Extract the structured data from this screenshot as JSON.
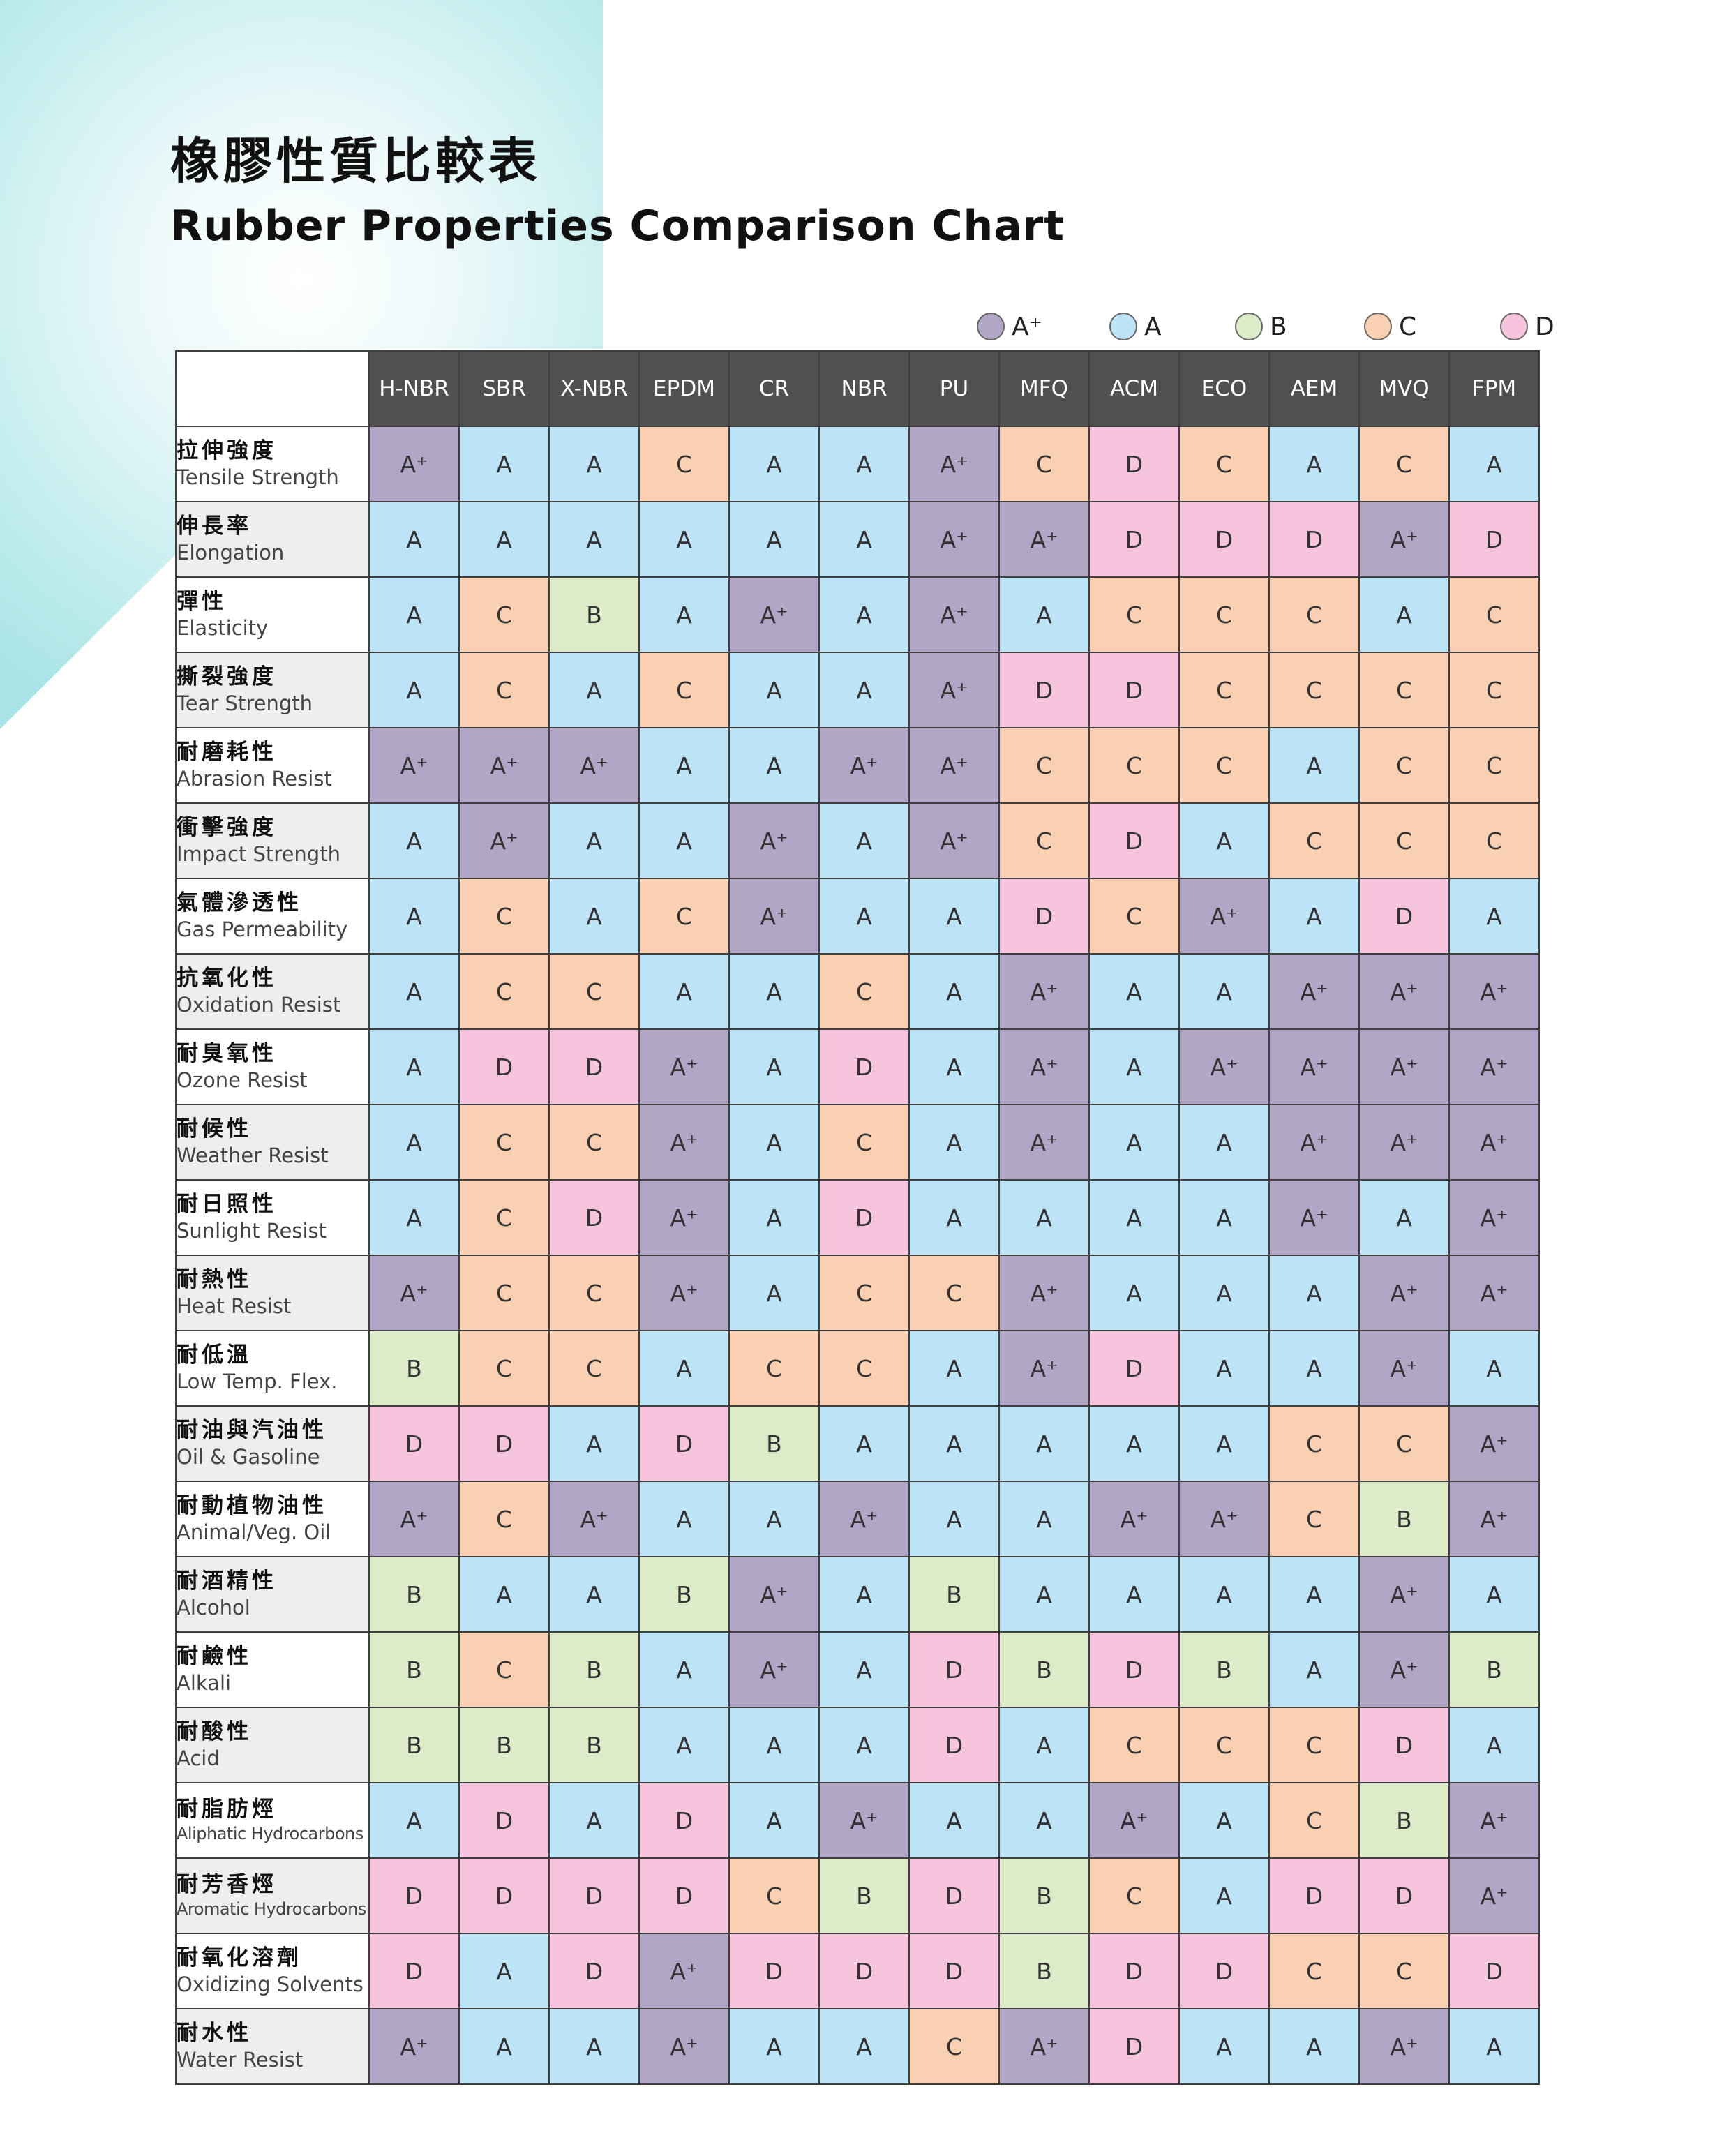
{
  "title": {
    "zh": "橡膠性質比較表",
    "en": "Rubber Properties Comparison Chart"
  },
  "colors": {
    "A+": "#b2a6c6",
    "A": "#bde3f6",
    "B": "#dcecc8",
    "C": "#fad0b3",
    "D": "#f6c4dc",
    "header": "#505050",
    "row_alt": "#eeeeee",
    "bg_accent": "#a9e4e6"
  },
  "legend": [
    {
      "grade": "A+",
      "label": "A⁺"
    },
    {
      "grade": "A",
      "label": "A"
    },
    {
      "grade": "B",
      "label": "B"
    },
    {
      "grade": "C",
      "label": "C"
    },
    {
      "grade": "D",
      "label": "D"
    }
  ],
  "chart_data": {
    "type": "table",
    "columns": [
      "H-NBR",
      "SBR",
      "X-NBR",
      "EPDM",
      "CR",
      "NBR",
      "PU",
      "MFQ",
      "ACM",
      "ECO",
      "AEM",
      "MVQ",
      "FPM"
    ],
    "rows": [
      {
        "zh": "拉伸強度",
        "en": "Tensile Strength",
        "values": [
          "A+",
          "A",
          "A",
          "C",
          "A",
          "A",
          "A+",
          "C",
          "D",
          "C",
          "A",
          "C",
          "A"
        ]
      },
      {
        "zh": "伸長率",
        "en": "Elongation",
        "values": [
          "A",
          "A",
          "A",
          "A",
          "A",
          "A",
          "A+",
          "A+",
          "D",
          "D",
          "D",
          "A+",
          "D"
        ]
      },
      {
        "zh": "彈性",
        "en": "Elasticity",
        "values": [
          "A",
          "C",
          "B",
          "A",
          "A+",
          "A",
          "A+",
          "A",
          "C",
          "C",
          "C",
          "A",
          "C"
        ]
      },
      {
        "zh": "撕裂強度",
        "en": "Tear Strength",
        "values": [
          "A",
          "C",
          "A",
          "C",
          "A",
          "A",
          "A+",
          "D",
          "D",
          "C",
          "C",
          "C",
          "C"
        ]
      },
      {
        "zh": "耐磨耗性",
        "en": "Abrasion Resist",
        "values": [
          "A+",
          "A+",
          "A+",
          "A",
          "A",
          "A+",
          "A+",
          "C",
          "C",
          "C",
          "A",
          "C",
          "C"
        ]
      },
      {
        "zh": "衝擊強度",
        "en": "Impact Strength",
        "values": [
          "A",
          "A+",
          "A",
          "A",
          "A+",
          "A",
          "A+",
          "C",
          "D",
          "A",
          "C",
          "C",
          "C"
        ]
      },
      {
        "zh": "氣體滲透性",
        "en": "Gas Permeability",
        "values": [
          "A",
          "C",
          "A",
          "C",
          "A+",
          "A",
          "A",
          "D",
          "C",
          "A+",
          "A",
          "D",
          "A"
        ]
      },
      {
        "zh": "抗氧化性",
        "en": "Oxidation Resist",
        "values": [
          "A",
          "C",
          "C",
          "A",
          "A",
          "C",
          "A",
          "A+",
          "A",
          "A",
          "A+",
          "A+",
          "A+"
        ]
      },
      {
        "zh": "耐臭氧性",
        "en": "Ozone Resist",
        "values": [
          "A",
          "D",
          "D",
          "A+",
          "A",
          "D",
          "A",
          "A+",
          "A",
          "A+",
          "A+",
          "A+",
          "A+"
        ]
      },
      {
        "zh": "耐候性",
        "en": "Weather Resist",
        "values": [
          "A",
          "C",
          "C",
          "A+",
          "A",
          "C",
          "A",
          "A+",
          "A",
          "A",
          "A+",
          "A+",
          "A+"
        ]
      },
      {
        "zh": "耐日照性",
        "en": "Sunlight Resist",
        "values": [
          "A",
          "C",
          "D",
          "A+",
          "A",
          "D",
          "A",
          "A",
          "A",
          "A",
          "A+",
          "A",
          "A+"
        ]
      },
      {
        "zh": "耐熱性",
        "en": "Heat Resist",
        "values": [
          "A+",
          "C",
          "C",
          "A+",
          "A",
          "C",
          "C",
          "A+",
          "A",
          "A",
          "A",
          "A+",
          "A+"
        ]
      },
      {
        "zh": "耐低溫",
        "en": "Low Temp. Flex.",
        "values": [
          "B",
          "C",
          "C",
          "A",
          "C",
          "C",
          "A",
          "A+",
          "D",
          "A",
          "A",
          "A+",
          "A"
        ]
      },
      {
        "zh": "耐油與汽油性",
        "en": "Oil & Gasoline",
        "values": [
          "D",
          "D",
          "A",
          "D",
          "B",
          "A",
          "A",
          "A",
          "A",
          "A",
          "C",
          "C",
          "A+"
        ]
      },
      {
        "zh": "耐動植物油性",
        "en": "Animal/Veg. Oil",
        "values": [
          "A+",
          "C",
          "A+",
          "A",
          "A",
          "A+",
          "A",
          "A",
          "A+",
          "A+",
          "C",
          "B",
          "A+"
        ]
      },
      {
        "zh": "耐酒精性",
        "en": "Alcohol",
        "values": [
          "B",
          "A",
          "A",
          "B",
          "A+",
          "A",
          "B",
          "A",
          "A",
          "A",
          "A",
          "A+",
          "A"
        ]
      },
      {
        "zh": "耐鹼性",
        "en": "Alkali",
        "values": [
          "B",
          "C",
          "B",
          "A",
          "A+",
          "A",
          "D",
          "B",
          "D",
          "B",
          "A",
          "A+",
          "B"
        ]
      },
      {
        "zh": "耐酸性",
        "en": "Acid",
        "values": [
          "B",
          "B",
          "B",
          "A",
          "A",
          "A",
          "D",
          "A",
          "C",
          "C",
          "C",
          "D",
          "A"
        ]
      },
      {
        "zh": "耐脂肪烴",
        "en": "Aliphatic Hydrocarbons",
        "values": [
          "A",
          "D",
          "A",
          "D",
          "A",
          "A+",
          "A",
          "A",
          "A+",
          "A",
          "C",
          "B",
          "A+"
        ]
      },
      {
        "zh": "耐芳香烴",
        "en": "Aromatic Hydrocarbons",
        "values": [
          "D",
          "D",
          "D",
          "D",
          "C",
          "B",
          "D",
          "B",
          "C",
          "A",
          "D",
          "D",
          "A+"
        ]
      },
      {
        "zh": "耐氧化溶劑",
        "en": "Oxidizing Solvents",
        "values": [
          "D",
          "A",
          "D",
          "A+",
          "D",
          "D",
          "D",
          "B",
          "D",
          "D",
          "C",
          "C",
          "D"
        ]
      },
      {
        "zh": "耐水性",
        "en": "Water Resist",
        "values": [
          "A+",
          "A",
          "A",
          "A+",
          "A",
          "A",
          "C",
          "A+",
          "D",
          "A",
          "A",
          "A+",
          "A"
        ]
      }
    ]
  }
}
